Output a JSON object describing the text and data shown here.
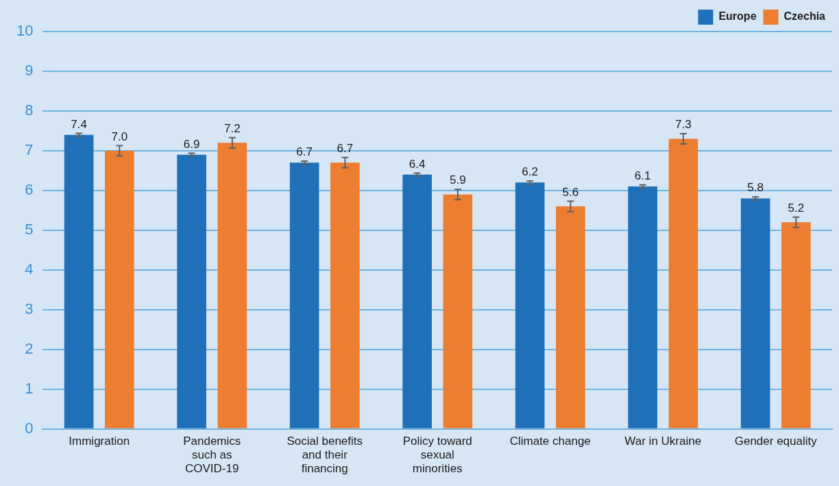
{
  "chart_data": {
    "type": "bar",
    "categories": [
      "Immigration",
      "Pandemics such as COVID-19",
      "Social benefits and their financing",
      "Policy toward sexual minorities",
      "Climate change",
      "War in Ukraine",
      "Gender equality"
    ],
    "series": [
      {
        "name": "Europe",
        "color": "#1f70b8",
        "values": [
          7.4,
          6.9,
          6.7,
          6.4,
          6.2,
          6.1,
          5.8
        ],
        "value_labels": [
          "7.4",
          "6.9",
          "6.7",
          "6.4",
          "6.2",
          "6.1",
          "5.8"
        ],
        "errors": [
          0.04,
          0.04,
          0.04,
          0.04,
          0.04,
          0.04,
          0.04
        ]
      },
      {
        "name": "Czechia",
        "color": "#ed7d31",
        "values": [
          7.0,
          7.2,
          6.7,
          5.9,
          5.6,
          7.3,
          5.2
        ],
        "value_labels": [
          "7.0",
          "7.2",
          "6.7",
          "5.9",
          "5.6",
          "7.3",
          "5.2"
        ],
        "errors": [
          0.13,
          0.13,
          0.13,
          0.13,
          0.13,
          0.13,
          0.13
        ]
      }
    ],
    "ylim": [
      0,
      10
    ],
    "yticks": [
      0,
      1,
      2,
      3,
      4,
      5,
      6,
      7,
      8,
      9,
      10
    ],
    "grid": "y",
    "legend": "top right"
  }
}
